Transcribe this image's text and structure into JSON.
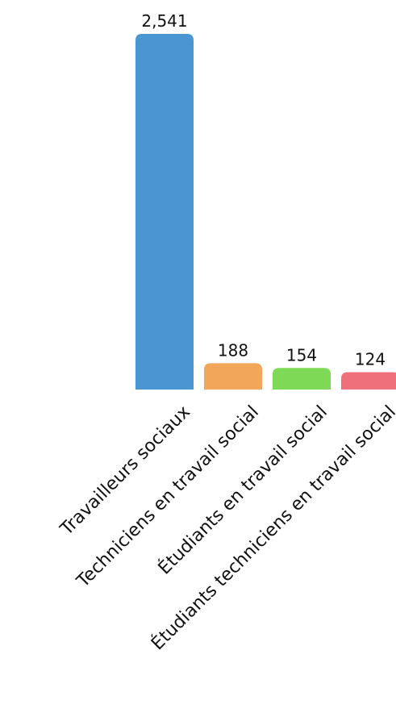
{
  "chart_data": {
    "type": "bar",
    "categories": [
      "Travailleurs sociaux",
      "Techniciens en travail social",
      "Étudiants en travail social",
      "Étudiants techniciens en travail social"
    ],
    "values": [
      2541,
      188,
      154,
      124
    ],
    "value_labels": [
      "2,541",
      "188",
      "154",
      "124"
    ],
    "colors": [
      "#4a96d2",
      "#f2a65a",
      "#7ed957",
      "#ef6f7b"
    ],
    "title": "",
    "xlabel": "",
    "ylabel": "",
    "ylim": [
      0,
      2541
    ],
    "grid": false,
    "legend": "none"
  }
}
